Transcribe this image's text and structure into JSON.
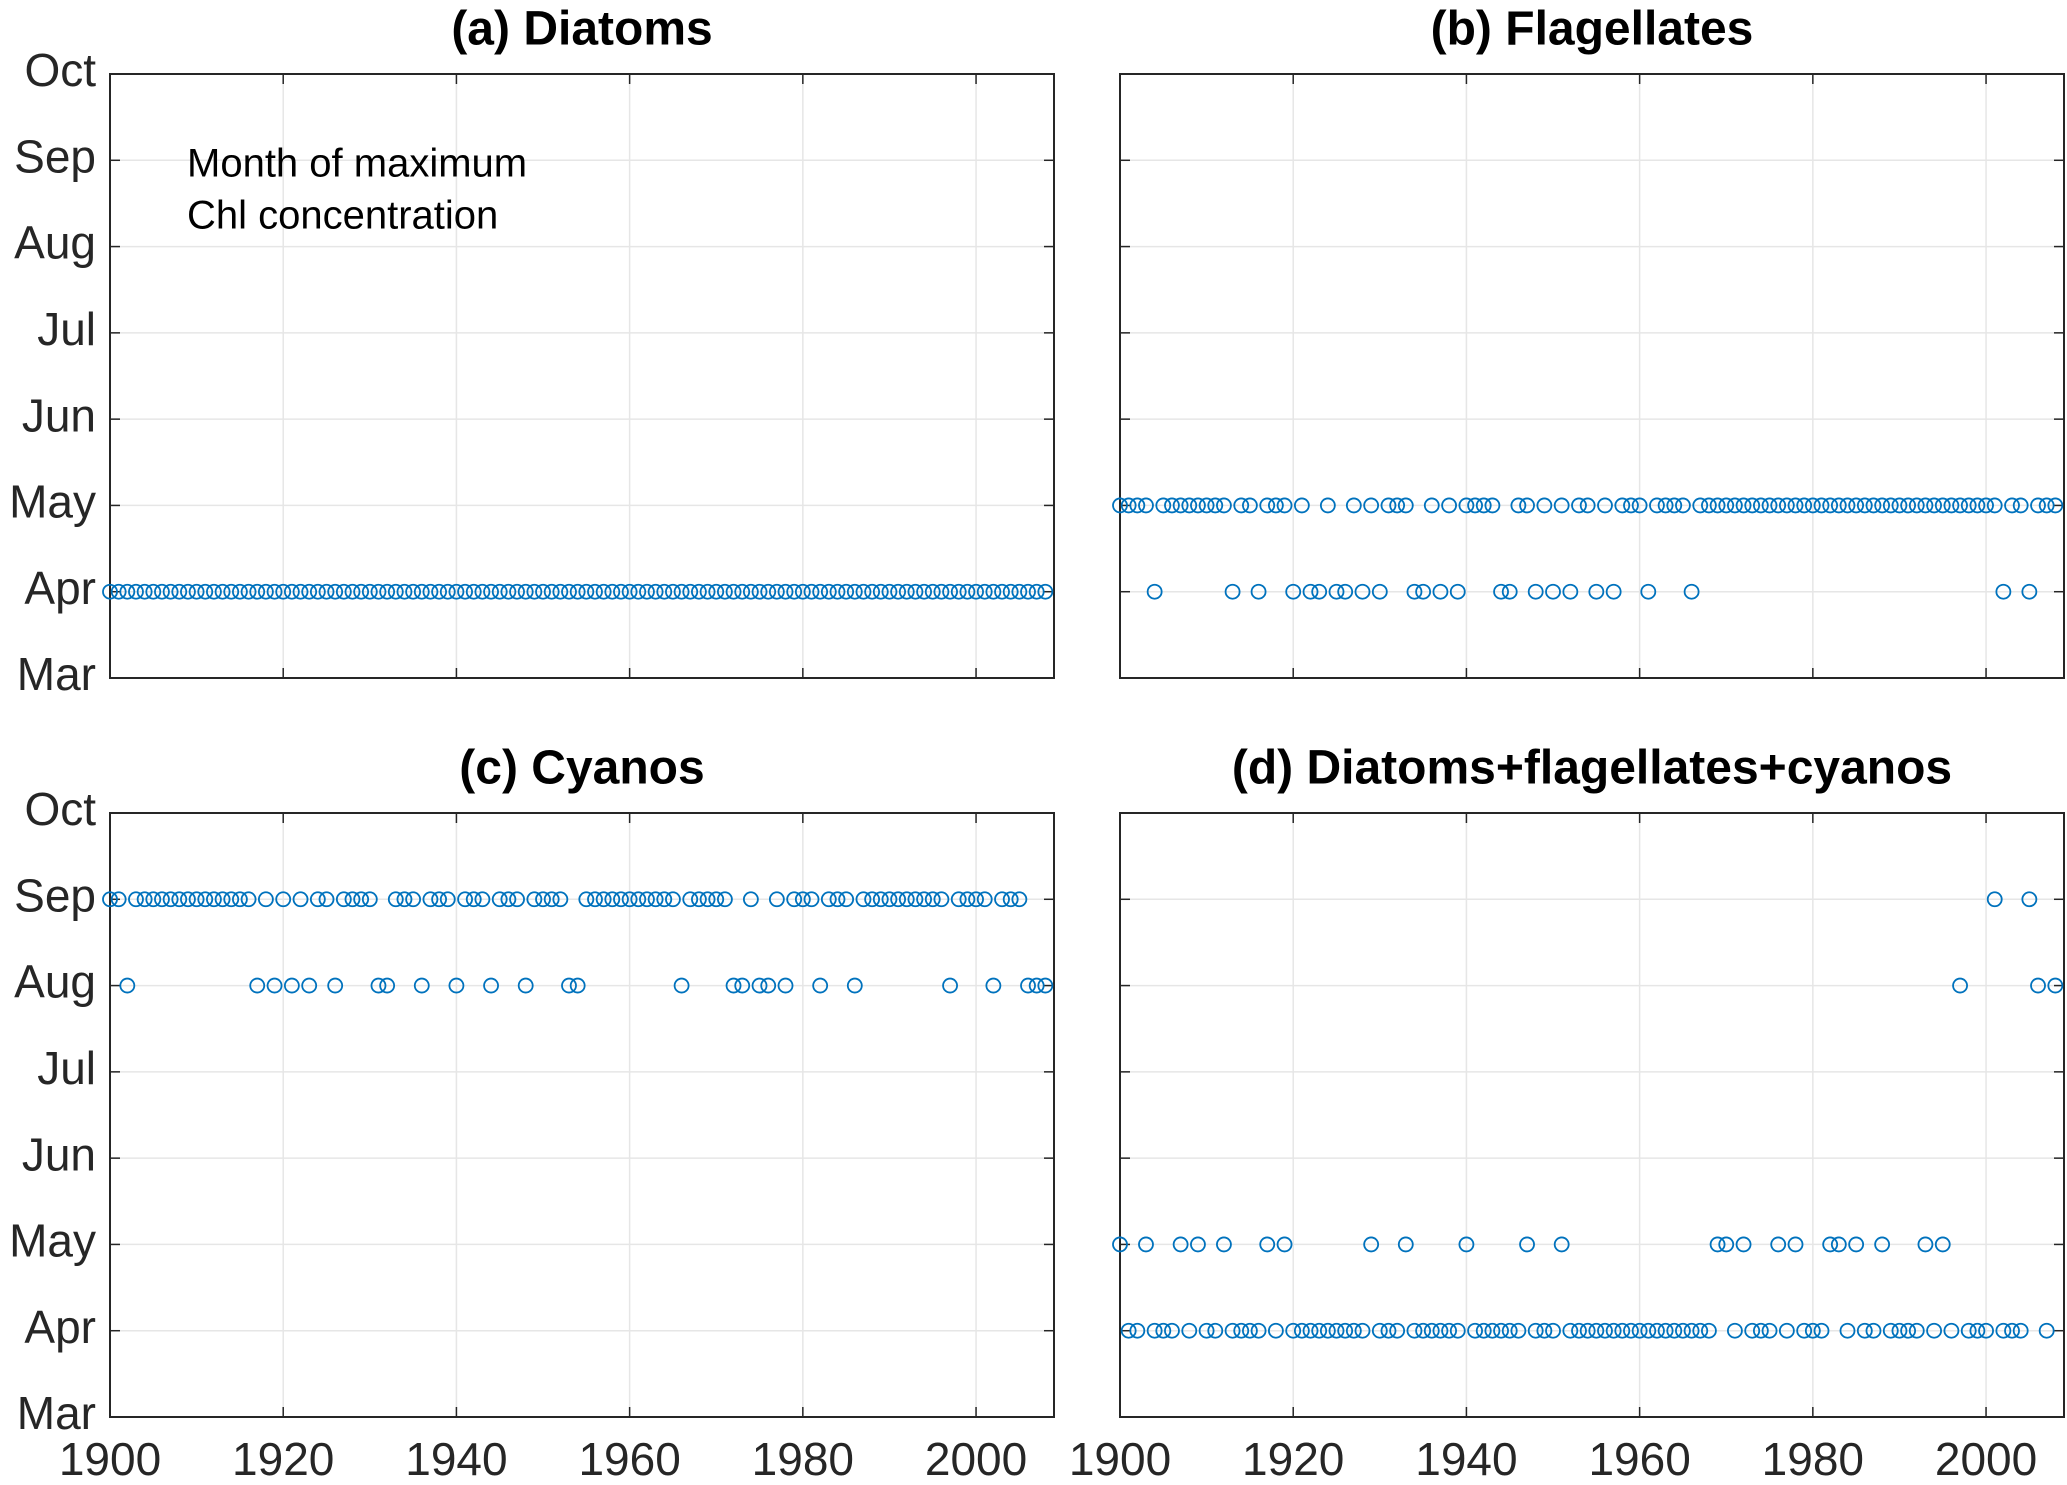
{
  "chart_data": [
    {
      "type": "scatter",
      "title": "(a) Diatoms",
      "annotation": [
        "Month of maximum",
        "Chl concentration"
      ],
      "color": "#0072BD",
      "grid": true,
      "xlim": [
        1900,
        2009
      ],
      "ylim": [
        3,
        10
      ],
      "xticks": [
        1900,
        1920,
        1940,
        1960,
        1980,
        2000
      ],
      "yticks": [
        {
          "value": 3,
          "label": "Mar"
        },
        {
          "value": 4,
          "label": "Apr"
        },
        {
          "value": 5,
          "label": "May"
        },
        {
          "value": 6,
          "label": "Jun"
        },
        {
          "value": 7,
          "label": "Jul"
        },
        {
          "value": 8,
          "label": "Aug"
        },
        {
          "value": 9,
          "label": "Sep"
        },
        {
          "value": 10,
          "label": "Oct"
        }
      ],
      "x": [
        1900,
        1901,
        1902,
        1903,
        1904,
        1905,
        1906,
        1907,
        1908,
        1909,
        1910,
        1911,
        1912,
        1913,
        1914,
        1915,
        1916,
        1917,
        1918,
        1919,
        1920,
        1921,
        1922,
        1923,
        1924,
        1925,
        1926,
        1927,
        1928,
        1929,
        1930,
        1931,
        1932,
        1933,
        1934,
        1935,
        1936,
        1937,
        1938,
        1939,
        1940,
        1941,
        1942,
        1943,
        1944,
        1945,
        1946,
        1947,
        1948,
        1949,
        1950,
        1951,
        1952,
        1953,
        1954,
        1955,
        1956,
        1957,
        1958,
        1959,
        1960,
        1961,
        1962,
        1963,
        1964,
        1965,
        1966,
        1967,
        1968,
        1969,
        1970,
        1971,
        1972,
        1973,
        1974,
        1975,
        1976,
        1977,
        1978,
        1979,
        1980,
        1981,
        1982,
        1983,
        1984,
        1985,
        1986,
        1987,
        1988,
        1989,
        1990,
        1991,
        1992,
        1993,
        1994,
        1995,
        1996,
        1997,
        1998,
        1999,
        2000,
        2001,
        2002,
        2003,
        2004,
        2005,
        2006,
        2007,
        2008
      ],
      "values": [
        4,
        4,
        4,
        4,
        4,
        4,
        4,
        4,
        4,
        4,
        4,
        4,
        4,
        4,
        4,
        4,
        4,
        4,
        4,
        4,
        4,
        4,
        4,
        4,
        4,
        4,
        4,
        4,
        4,
        4,
        4,
        4,
        4,
        4,
        4,
        4,
        4,
        4,
        4,
        4,
        4,
        4,
        4,
        4,
        4,
        4,
        4,
        4,
        4,
        4,
        4,
        4,
        4,
        4,
        4,
        4,
        4,
        4,
        4,
        4,
        4,
        4,
        4,
        4,
        4,
        4,
        4,
        4,
        4,
        4,
        4,
        4,
        4,
        4,
        4,
        4,
        4,
        4,
        4,
        4,
        4,
        4,
        4,
        4,
        4,
        4,
        4,
        4,
        4,
        4,
        4,
        4,
        4,
        4,
        4,
        4,
        4,
        4,
        4,
        4,
        4,
        4,
        4,
        4,
        4,
        4,
        4,
        4,
        4
      ]
    },
    {
      "type": "scatter",
      "title": "(b) Flagellates",
      "color": "#0072BD",
      "grid": true,
      "xlim": [
        1900,
        2009
      ],
      "ylim": [
        3,
        10
      ],
      "xticks": [
        1900,
        1920,
        1940,
        1960,
        1980,
        2000
      ],
      "yticks": [
        3,
        4,
        5,
        6,
        7,
        8,
        9,
        10
      ],
      "x": [
        1900,
        1901,
        1902,
        1903,
        1904,
        1905,
        1906,
        1907,
        1908,
        1909,
        1910,
        1911,
        1912,
        1913,
        1914,
        1915,
        1916,
        1917,
        1918,
        1919,
        1920,
        1921,
        1922,
        1923,
        1924,
        1925,
        1926,
        1927,
        1928,
        1929,
        1930,
        1931,
        1932,
        1933,
        1934,
        1935,
        1936,
        1937,
        1938,
        1939,
        1940,
        1941,
        1942,
        1943,
        1944,
        1945,
        1946,
        1947,
        1948,
        1949,
        1950,
        1951,
        1952,
        1953,
        1954,
        1955,
        1956,
        1957,
        1958,
        1959,
        1960,
        1961,
        1962,
        1963,
        1964,
        1965,
        1966,
        1967,
        1968,
        1969,
        1970,
        1971,
        1972,
        1973,
        1974,
        1975,
        1976,
        1977,
        1978,
        1979,
        1980,
        1981,
        1982,
        1983,
        1984,
        1985,
        1986,
        1987,
        1988,
        1989,
        1990,
        1991,
        1992,
        1993,
        1994,
        1995,
        1996,
        1997,
        1998,
        1999,
        2000,
        2001,
        2002,
        2003,
        2004,
        2005,
        2006,
        2007,
        2008
      ],
      "values": [
        5,
        5,
        5,
        5,
        4,
        5,
        5,
        5,
        5,
        5,
        5,
        5,
        5,
        4,
        5,
        5,
        4,
        5,
        5,
        5,
        4,
        5,
        4,
        4,
        5,
        4,
        4,
        5,
        4,
        5,
        4,
        5,
        5,
        5,
        4,
        4,
        5,
        4,
        5,
        4,
        5,
        5,
        5,
        5,
        4,
        4,
        5,
        5,
        4,
        5,
        4,
        5,
        4,
        5,
        5,
        4,
        5,
        4,
        5,
        5,
        5,
        4,
        5,
        5,
        5,
        5,
        4,
        5,
        5,
        5,
        5,
        5,
        5,
        5,
        5,
        5,
        5,
        5,
        5,
        5,
        5,
        5,
        5,
        5,
        5,
        5,
        5,
        5,
        5,
        5,
        5,
        5,
        5,
        5,
        5,
        5,
        5,
        5,
        5,
        5,
        5,
        5,
        4,
        5,
        5,
        4,
        5,
        5,
        5
      ]
    },
    {
      "type": "scatter",
      "title": "(c) Cyanos",
      "color": "#0072BD",
      "grid": true,
      "xlim": [
        1900,
        2009
      ],
      "ylim": [
        3,
        10
      ],
      "xticks": [
        1900,
        1920,
        1940,
        1960,
        1980,
        2000
      ],
      "yticks": [
        {
          "value": 3,
          "label": "Mar"
        },
        {
          "value": 4,
          "label": "Apr"
        },
        {
          "value": 5,
          "label": "May"
        },
        {
          "value": 6,
          "label": "Jun"
        },
        {
          "value": 7,
          "label": "Jul"
        },
        {
          "value": 8,
          "label": "Aug"
        },
        {
          "value": 9,
          "label": "Sep"
        },
        {
          "value": 10,
          "label": "Oct"
        }
      ],
      "x": [
        1900,
        1901,
        1902,
        1903,
        1904,
        1905,
        1906,
        1907,
        1908,
        1909,
        1910,
        1911,
        1912,
        1913,
        1914,
        1915,
        1916,
        1917,
        1918,
        1919,
        1920,
        1921,
        1922,
        1923,
        1924,
        1925,
        1926,
        1927,
        1928,
        1929,
        1930,
        1931,
        1932,
        1933,
        1934,
        1935,
        1936,
        1937,
        1938,
        1939,
        1940,
        1941,
        1942,
        1943,
        1944,
        1945,
        1946,
        1947,
        1948,
        1949,
        1950,
        1951,
        1952,
        1953,
        1954,
        1955,
        1956,
        1957,
        1958,
        1959,
        1960,
        1961,
        1962,
        1963,
        1964,
        1965,
        1966,
        1967,
        1968,
        1969,
        1970,
        1971,
        1972,
        1973,
        1974,
        1975,
        1976,
        1977,
        1978,
        1979,
        1980,
        1981,
        1982,
        1983,
        1984,
        1985,
        1986,
        1987,
        1988,
        1989,
        1990,
        1991,
        1992,
        1993,
        1994,
        1995,
        1996,
        1997,
        1998,
        1999,
        2000,
        2001,
        2002,
        2003,
        2004,
        2005,
        2006,
        2007,
        2008
      ],
      "values": [
        9,
        9,
        8,
        9,
        9,
        9,
        9,
        9,
        9,
        9,
        9,
        9,
        9,
        9,
        9,
        9,
        9,
        8,
        9,
        8,
        9,
        8,
        9,
        8,
        9,
        9,
        8,
        9,
        9,
        9,
        9,
        8,
        8,
        9,
        9,
        9,
        8,
        9,
        9,
        9,
        8,
        9,
        9,
        9,
        8,
        9,
        9,
        9,
        8,
        9,
        9,
        9,
        9,
        8,
        8,
        9,
        9,
        9,
        9,
        9,
        9,
        9,
        9,
        9,
        9,
        9,
        8,
        9,
        9,
        9,
        9,
        9,
        8,
        8,
        9,
        8,
        8,
        9,
        8,
        9,
        9,
        9,
        8,
        9,
        9,
        9,
        8,
        9,
        9,
        9,
        9,
        9,
        9,
        9,
        9,
        9,
        9,
        8,
        9,
        9,
        9,
        9,
        8,
        9,
        9,
        9,
        8,
        8,
        8
      ]
    },
    {
      "type": "scatter",
      "title": "(d) Diatoms+flagellates+cyanos",
      "color": "#0072BD",
      "grid": true,
      "xlim": [
        1900,
        2009
      ],
      "ylim": [
        3,
        10
      ],
      "xticks": [
        1900,
        1920,
        1940,
        1960,
        1980,
        2000
      ],
      "yticks": [
        3,
        4,
        5,
        6,
        7,
        8,
        9,
        10
      ],
      "x": [
        1900,
        1901,
        1902,
        1903,
        1904,
        1905,
        1906,
        1907,
        1908,
        1909,
        1910,
        1911,
        1912,
        1913,
        1914,
        1915,
        1916,
        1917,
        1918,
        1919,
        1920,
        1921,
        1922,
        1923,
        1924,
        1925,
        1926,
        1927,
        1928,
        1929,
        1930,
        1931,
        1932,
        1933,
        1934,
        1935,
        1936,
        1937,
        1938,
        1939,
        1940,
        1941,
        1942,
        1943,
        1944,
        1945,
        1946,
        1947,
        1948,
        1949,
        1950,
        1951,
        1952,
        1953,
        1954,
        1955,
        1956,
        1957,
        1958,
        1959,
        1960,
        1961,
        1962,
        1963,
        1964,
        1965,
        1966,
        1967,
        1968,
        1969,
        1970,
        1971,
        1972,
        1973,
        1974,
        1975,
        1976,
        1977,
        1978,
        1979,
        1980,
        1981,
        1982,
        1983,
        1984,
        1985,
        1986,
        1987,
        1988,
        1989,
        1990,
        1991,
        1992,
        1993,
        1994,
        1995,
        1996,
        1997,
        1998,
        1999,
        2000,
        2001,
        2002,
        2003,
        2004,
        2005,
        2006,
        2007,
        2008
      ],
      "values": [
        5,
        4,
        4,
        5,
        4,
        4,
        4,
        5,
        4,
        5,
        4,
        4,
        5,
        4,
        4,
        4,
        4,
        5,
        4,
        5,
        4,
        4,
        4,
        4,
        4,
        4,
        4,
        4,
        4,
        5,
        4,
        4,
        4,
        5,
        4,
        4,
        4,
        4,
        4,
        4,
        5,
        4,
        4,
        4,
        4,
        4,
        4,
        5,
        4,
        4,
        4,
        5,
        4,
        4,
        4,
        4,
        4,
        4,
        4,
        4,
        4,
        4,
        4,
        4,
        4,
        4,
        4,
        4,
        4,
        5,
        5,
        4,
        5,
        4,
        4,
        4,
        5,
        4,
        5,
        4,
        4,
        4,
        5,
        5,
        4,
        5,
        4,
        4,
        5,
        4,
        4,
        4,
        4,
        5,
        4,
        5,
        4,
        8,
        4,
        4,
        4,
        9,
        4,
        4,
        4,
        9,
        8,
        4,
        8
      ]
    }
  ]
}
